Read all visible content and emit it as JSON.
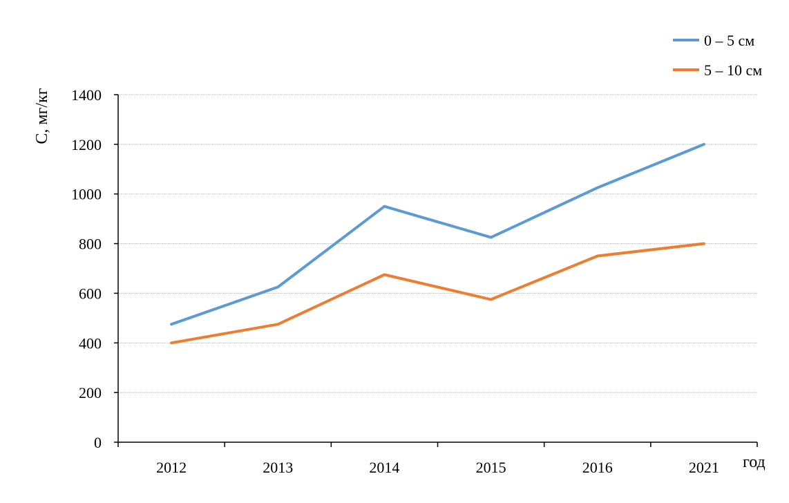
{
  "chart_data": {
    "type": "line",
    "categories": [
      "2012",
      "2013",
      "2014",
      "2015",
      "2016",
      "2021"
    ],
    "series": [
      {
        "name": "0 – 5 см",
        "values": [
          475,
          625,
          950,
          825,
          1025,
          1200
        ],
        "color": "#5B9BD5"
      },
      {
        "name": "5 – 10 см",
        "values": [
          400,
          475,
          675,
          575,
          750,
          800
        ],
        "color": "#ED7D31"
      }
    ],
    "xlabel": "год",
    "ylabel": "С, мг/кг",
    "ylim": [
      0,
      1400
    ],
    "yticks": [
      0,
      200,
      400,
      600,
      800,
      1000,
      1200,
      1400
    ],
    "grid": true,
    "legend_position": "top-right"
  }
}
